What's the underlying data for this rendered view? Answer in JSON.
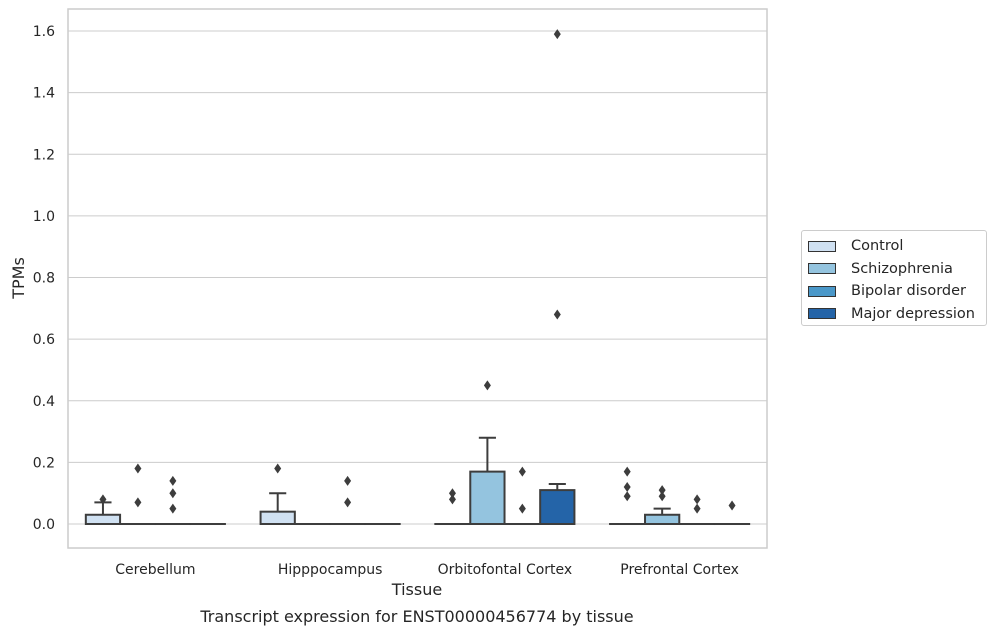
{
  "chart_data": {
    "type": "box",
    "title": "Transcript expression for ENST00000456774 by tissue",
    "xlabel": "Tissue",
    "ylabel": "TPMs",
    "ylim": [
      -0.08,
      1.67
    ],
    "yticks": [
      "0.0",
      "0.2",
      "0.4",
      "0.6",
      "0.8",
      "1.0",
      "1.2",
      "1.4",
      "1.6"
    ],
    "grid": true,
    "legend_position": "right",
    "categories": [
      "Cerebellum",
      "Hipppocampus",
      "Orbitofontal Cortex",
      "Prefrontal Cortex"
    ],
    "series": [
      {
        "name": "Control",
        "color": "#d0e1f2",
        "boxes": [
          {
            "q1": 0.0,
            "median": 0.0,
            "q3": 0.03,
            "whisker_high": 0.07,
            "outliers": [
              0.08
            ]
          },
          {
            "q1": 0.0,
            "median": 0.0,
            "q3": 0.04,
            "whisker_high": 0.1,
            "outliers": [
              0.18
            ]
          },
          {
            "q1": 0.0,
            "median": 0.0,
            "q3": 0.0,
            "whisker_high": 0.0,
            "outliers": [
              0.08,
              0.1
            ]
          },
          {
            "q1": 0.0,
            "median": 0.0,
            "q3": 0.0,
            "whisker_high": 0.0,
            "outliers": [
              0.09,
              0.12,
              0.17
            ]
          }
        ]
      },
      {
        "name": "Schizophrenia",
        "color": "#94c4df",
        "boxes": [
          {
            "q1": 0.0,
            "median": 0.0,
            "q3": 0.0,
            "whisker_high": 0.0,
            "outliers": [
              0.07,
              0.18
            ]
          },
          {
            "q1": 0.0,
            "median": 0.0,
            "q3": 0.0,
            "whisker_high": 0.0,
            "outliers": []
          },
          {
            "q1": 0.0,
            "median": 0.0,
            "q3": 0.17,
            "whisker_high": 0.28,
            "outliers": [
              0.45
            ]
          },
          {
            "q1": 0.0,
            "median": 0.0,
            "q3": 0.03,
            "whisker_high": 0.05,
            "outliers": [
              0.09,
              0.11
            ]
          }
        ]
      },
      {
        "name": "Bipolar disorder",
        "color": "#4a98c9",
        "boxes": [
          {
            "q1": 0.0,
            "median": 0.0,
            "q3": 0.0,
            "whisker_high": 0.0,
            "outliers": [
              0.05,
              0.1,
              0.14
            ]
          },
          {
            "q1": 0.0,
            "median": 0.0,
            "q3": 0.0,
            "whisker_high": 0.0,
            "outliers": [
              0.07,
              0.14
            ]
          },
          {
            "q1": 0.0,
            "median": 0.0,
            "q3": 0.0,
            "whisker_high": 0.0,
            "outliers": [
              0.05,
              0.17
            ]
          },
          {
            "q1": 0.0,
            "median": 0.0,
            "q3": 0.0,
            "whisker_high": 0.0,
            "outliers": [
              0.05,
              0.08
            ]
          }
        ]
      },
      {
        "name": "Major depression",
        "color": "#2464a8",
        "boxes": [
          {
            "q1": 0.0,
            "median": 0.0,
            "q3": 0.0,
            "whisker_high": 0.0,
            "outliers": []
          },
          {
            "q1": 0.0,
            "median": 0.0,
            "q3": 0.0,
            "whisker_high": 0.0,
            "outliers": []
          },
          {
            "q1": 0.0,
            "median": 0.0,
            "q3": 0.11,
            "whisker_high": 0.13,
            "outliers": [
              0.68,
              1.59
            ]
          },
          {
            "q1": 0.0,
            "median": 0.0,
            "q3": 0.0,
            "whisker_high": 0.0,
            "outliers": [
              0.06
            ]
          }
        ]
      }
    ]
  }
}
